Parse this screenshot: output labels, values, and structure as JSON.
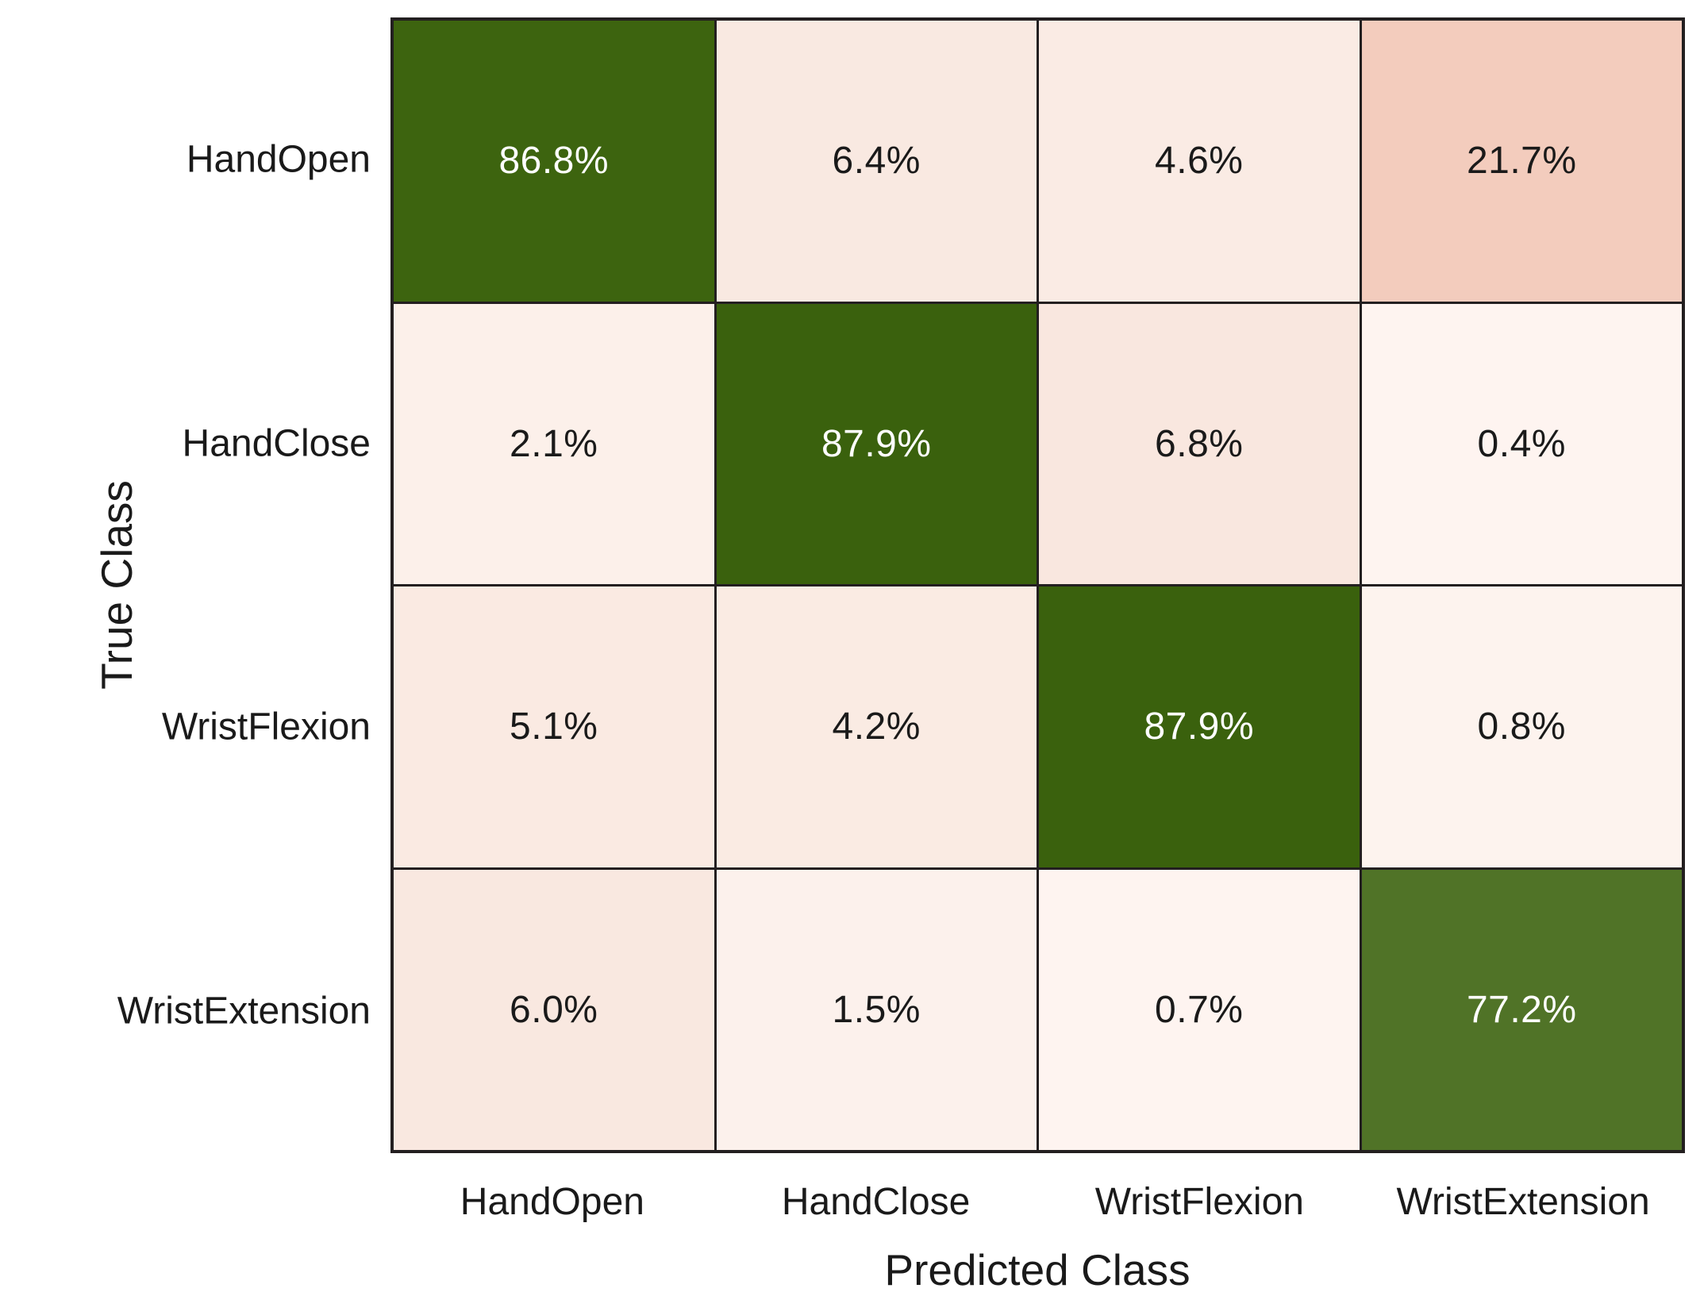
{
  "chart_data": {
    "type": "heatmap",
    "title": "",
    "xlabel": "Predicted Class",
    "ylabel": "True Class",
    "x_tick_labels": [
      "HandOpen",
      "HandClose",
      "WristFlexion",
      "WristExtension"
    ],
    "y_tick_labels": [
      "HandOpen",
      "HandClose",
      "WristFlexion",
      "WristExtension"
    ],
    "values_percent": [
      [
        86.8,
        6.4,
        4.6,
        21.7
      ],
      [
        2.1,
        87.9,
        6.8,
        0.4
      ],
      [
        5.1,
        4.2,
        87.9,
        0.8
      ],
      [
        6.0,
        1.5,
        0.7,
        77.2
      ]
    ],
    "cell_labels": [
      [
        "86.8%",
        "6.4%",
        "4.6%",
        "21.7%"
      ],
      [
        "2.1%",
        "87.9%",
        "6.8%",
        "0.4%"
      ],
      [
        "5.1%",
        "4.2%",
        "87.9%",
        "0.8%"
      ],
      [
        "6.0%",
        "1.5%",
        "0.7%",
        "77.2%"
      ]
    ],
    "cell_colors": [
      [
        "#3D640F",
        "#F9E9E1",
        "#FAEBE4",
        "#F3CCBD"
      ],
      [
        "#FCF0EA",
        "#3A610D",
        "#F9E7DF",
        "#FEF4F0"
      ],
      [
        "#FAEAE2",
        "#FAEBE3",
        "#3A610D",
        "#FDF3EE"
      ],
      [
        "#F9E8E0",
        "#FCF1EC",
        "#FEF4F0",
        "#507327"
      ]
    ],
    "cell_text_colors": [
      [
        "#ffffff",
        "#1a1a1a",
        "#1a1a1a",
        "#1a1a1a"
      ],
      [
        "#1a1a1a",
        "#ffffff",
        "#1a1a1a",
        "#1a1a1a"
      ],
      [
        "#1a1a1a",
        "#1a1a1a",
        "#ffffff",
        "#1a1a1a"
      ],
      [
        "#1a1a1a",
        "#1a1a1a",
        "#1a1a1a",
        "#ffffff"
      ]
    ],
    "layout": {
      "gridline_color": "#231f20",
      "background": "#ffffff",
      "legend": "none",
      "grid_rows": 4,
      "grid_cols": 4
    }
  }
}
